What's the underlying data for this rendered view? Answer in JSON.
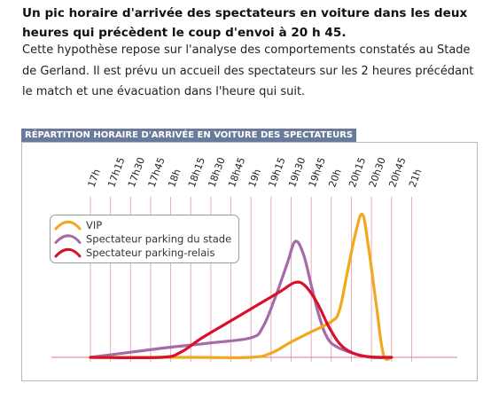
{
  "heading": "Un pic horaire d'arrivée des spectateurs en voiture dans les deux heures qui précèdent le coup d'envoi à 20 h 45.",
  "paragraph": "Cette hypothèse repose sur l'analyse des comportements constatés au Stade de Gerland. Il est prévu un accueil des spectateurs sur les 2 heures précédant le match et une évacuation dans l'heure qui suit.",
  "chart_data": {
    "type": "line",
    "title": "RÉPARTITION HORAIRE D'ARRIVÉE EN VOITURE DES SPECTATEURS",
    "categories": [
      "17h",
      "17h15",
      "17h30",
      "17h45",
      "18h",
      "18h15",
      "18h30",
      "18h45",
      "19h",
      "19h15",
      "19h30",
      "19h45",
      "20h",
      "20h15",
      "20h30",
      "20h45",
      "21h"
    ],
    "xlabel": "",
    "ylabel": "",
    "grid": true,
    "legend_position": "top-left",
    "y_axis_labels": false,
    "series": [
      {
        "name": "VIP",
        "color": "#f2a81d",
        "points": [
          [
            0,
            0
          ],
          [
            5,
            0
          ],
          [
            8,
            0
          ],
          [
            9,
            0.5
          ],
          [
            10,
            1.8
          ],
          [
            11,
            3
          ],
          [
            12,
            4.2
          ],
          [
            12.4,
            5.5
          ],
          [
            12.8,
            10
          ],
          [
            13.2,
            14.5
          ],
          [
            13.55,
            16.8
          ],
          [
            13.85,
            13
          ],
          [
            14.25,
            6
          ],
          [
            14.6,
            0.3
          ],
          [
            15,
            0
          ]
        ]
      },
      {
        "name": "Spectateur parking du stade",
        "color": "#a66aa8",
        "points": [
          [
            0,
            0
          ],
          [
            2,
            0.6
          ],
          [
            4,
            1.2
          ],
          [
            6,
            1.7
          ],
          [
            8,
            2.3
          ],
          [
            8.6,
            3.6
          ],
          [
            9.2,
            7
          ],
          [
            9.8,
            11
          ],
          [
            10.2,
            13.6
          ],
          [
            10.6,
            12.2
          ],
          [
            11,
            8.5
          ],
          [
            11.4,
            4.8
          ],
          [
            11.8,
            2.3
          ],
          [
            12.3,
            1.2
          ],
          [
            13.2,
            0.4
          ],
          [
            14,
            0
          ],
          [
            15,
            0
          ]
        ]
      },
      {
        "name": "Spectateur parking-relais",
        "color": "#d8102a",
        "points": [
          [
            0,
            0
          ],
          [
            3.5,
            0
          ],
          [
            4.5,
            0.6
          ],
          [
            5.5,
            2.2
          ],
          [
            7,
            4.3
          ],
          [
            8.5,
            6.4
          ],
          [
            9.5,
            7.8
          ],
          [
            10.2,
            8.8
          ],
          [
            10.7,
            8.4
          ],
          [
            11.3,
            6.4
          ],
          [
            11.9,
            3.5
          ],
          [
            12.5,
            1.4
          ],
          [
            13.2,
            0.4
          ],
          [
            14,
            0.05
          ],
          [
            15,
            0
          ]
        ]
      }
    ]
  }
}
